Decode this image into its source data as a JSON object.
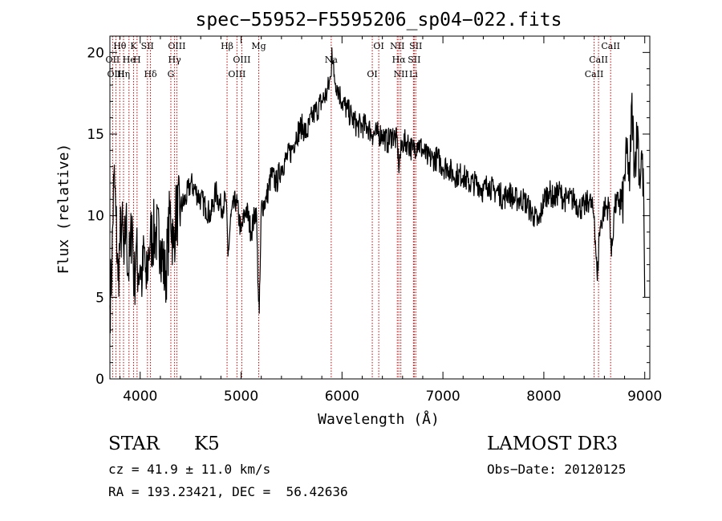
{
  "chart_data": {
    "type": "line",
    "title": "spec−55952−F5595206_sp04−022.fits",
    "xlabel": "Wavelength (Å)",
    "ylabel": "Flux (relative)",
    "xlim": [
      3700,
      9050
    ],
    "ylim": [
      0,
      21
    ],
    "xticks": [
      4000,
      5000,
      6000,
      7000,
      8000,
      9000
    ],
    "yticks": [
      0,
      5,
      10,
      15,
      20
    ],
    "grid": false,
    "series": [
      {
        "x": [
          3700,
          3720,
          3740,
          3760,
          3780,
          3800,
          3820,
          3840,
          3860,
          3880,
          3900,
          3920,
          3940,
          3960,
          3980,
          4000,
          4020,
          4040,
          4060,
          4080,
          4100,
          4150,
          4200,
          4250,
          4300,
          4330,
          4350,
          4400,
          4450,
          4500,
          4550,
          4600,
          4650,
          4700,
          4750,
          4800,
          4850,
          4870,
          4900,
          4950,
          5000,
          5050,
          5100,
          5150,
          5170,
          5180,
          5190,
          5200,
          5250,
          5300,
          5350,
          5400,
          5450,
          5500,
          5550,
          5600,
          5650,
          5700,
          5750,
          5800,
          5850,
          5890,
          5900,
          5920,
          5950,
          6000,
          6050,
          6100,
          6150,
          6200,
          6250,
          6300,
          6350,
          6400,
          6450,
          6500,
          6550,
          6560,
          6600,
          6650,
          6700,
          6750,
          6800,
          6850,
          6900,
          6950,
          7000,
          7050,
          7100,
          7150,
          7200,
          7250,
          7300,
          7350,
          7400,
          7450,
          7500,
          7550,
          7600,
          7650,
          7700,
          7750,
          7800,
          7850,
          7900,
          7950,
          8000,
          8050,
          8100,
          8150,
          8200,
          8250,
          8300,
          8350,
          8400,
          8450,
          8500,
          8530,
          8550,
          8600,
          8650,
          8670,
          8700,
          8750,
          8780,
          8800,
          8830,
          8850,
          8870,
          8900,
          8930,
          8950,
          8970,
          8990,
          9000
        ],
        "values": [
          4.5,
          7.0,
          12.5,
          10.0,
          6.0,
          8.5,
          9.5,
          7.0,
          10.0,
          6.5,
          7.5,
          10.0,
          5.5,
          8.0,
          6.5,
          7.0,
          6.0,
          8.0,
          5.5,
          7.5,
          8.5,
          9.0,
          8.5,
          6.0,
          10.5,
          8.0,
          10.0,
          10.5,
          11.0,
          12.0,
          11.5,
          11.0,
          10.5,
          10.0,
          11.5,
          10.5,
          11.0,
          7.5,
          10.0,
          11.0,
          9.0,
          10.5,
          9.0,
          10.5,
          5.5,
          4.0,
          7.0,
          10.5,
          11.0,
          12.5,
          12.0,
          13.0,
          13.5,
          14.0,
          15.0,
          15.5,
          15.0,
          16.0,
          16.5,
          17.0,
          17.5,
          18.5,
          20.3,
          18.5,
          18.0,
          17.0,
          16.5,
          16.0,
          15.5,
          15.5,
          15.5,
          15.0,
          15.0,
          15.0,
          14.5,
          15.0,
          14.5,
          13.0,
          14.5,
          14.5,
          14.0,
          14.5,
          14.0,
          13.5,
          13.5,
          13.5,
          13.0,
          13.0,
          12.5,
          12.5,
          12.5,
          12.0,
          12.0,
          12.0,
          11.5,
          12.0,
          11.5,
          11.5,
          11.0,
          11.5,
          11.0,
          11.0,
          11.0,
          10.5,
          10.0,
          9.5,
          11.0,
          11.5,
          11.0,
          11.5,
          11.0,
          11.0,
          11.0,
          10.5,
          10.5,
          11.0,
          10.0,
          6.0,
          9.0,
          10.5,
          10.5,
          7.5,
          10.5,
          11.0,
          10.5,
          12.5,
          14.0,
          11.5,
          17.0,
          13.0,
          15.5,
          12.0,
          14.0,
          11.0,
          5.0
        ]
      }
    ],
    "lines": [
      {
        "label": "Hθ",
        "x": 3798
      },
      {
        "label": "OII",
        "x": 3727
      },
      {
        "label": "OIII",
        "x": 3760
      },
      {
        "label": "K",
        "x": 3934
      },
      {
        "label": "He",
        "x": 3889
      },
      {
        "label": "Hη",
        "x": 3835
      },
      {
        "label": "SII",
        "x": 4072
      },
      {
        "label": "H",
        "x": 3969
      },
      {
        "label": "Hδ",
        "x": 4102
      },
      {
        "label": "OIII",
        "x": 4363
      },
      {
        "label": "Hγ",
        "x": 4341
      },
      {
        "label": "G",
        "x": 4304
      },
      {
        "label": "Hβ",
        "x": 4861
      },
      {
        "label": "OIII",
        "x": 5007
      },
      {
        "label": "OIII",
        "x": 4959
      },
      {
        "label": "Mg",
        "x": 5175
      },
      {
        "label": "Na",
        "x": 5893
      },
      {
        "label": "OI",
        "x": 6300
      },
      {
        "label": "OI",
        "x": 6364
      },
      {
        "label": "Hα",
        "x": 6563
      },
      {
        "label": "NII",
        "x": 6583
      },
      {
        "label": "NII",
        "x": 6548
      },
      {
        "label": "SII",
        "x": 6716
      },
      {
        "label": "Li",
        "x": 6708
      },
      {
        "label": "SII",
        "x": 6731
      },
      {
        "label": "CaII",
        "x": 8542
      },
      {
        "label": "CaII",
        "x": 8498
      },
      {
        "label": "CaII",
        "x": 8662
      }
    ]
  },
  "info": {
    "class": "STAR",
    "subclass": "K5",
    "survey": "LAMOST DR3",
    "cz": "cz = 41.9 ± 11.0 km/s",
    "obs_date": "Obs−Date: 20120125",
    "coords": "RA = 193.23421, DEC =  56.42636"
  }
}
